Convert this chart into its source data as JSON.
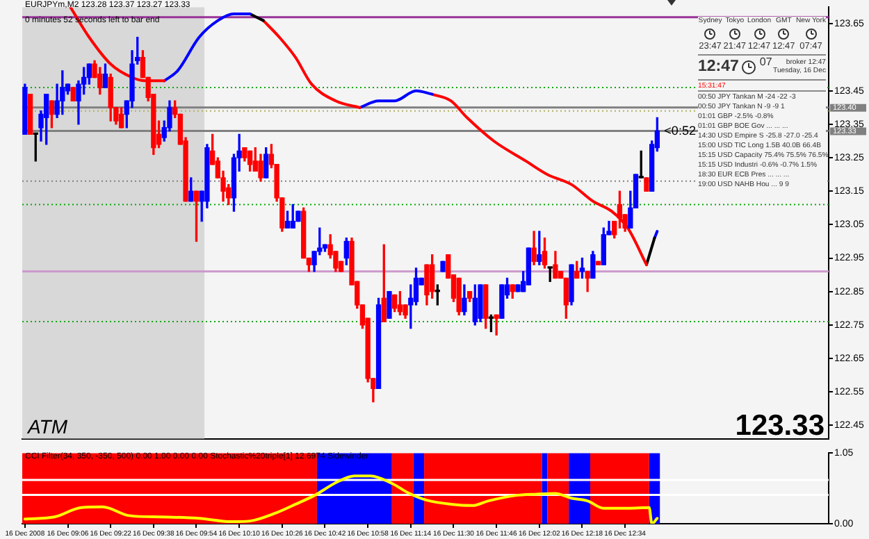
{
  "chart_data": [
    {
      "type": "candlestick",
      "title": "EURJPYm,M2 123.28 123.37 123.27 123.33",
      "subtitle": "0 minutes 52 seconds left to bar end",
      "series": [
        {
          "type": "candlestick",
          "x": [
            "2008-12-16T08:50",
            "2008-12-16T08:52",
            "2008-12-16T08:54",
            "2008-12-16T08:56",
            "2008-12-16T08:58",
            "2008-12-16T09:00",
            "2008-12-16T09:02",
            "2008-12-16T09:04",
            "2008-12-16T09:06",
            "2008-12-16T09:08",
            "2008-12-16T09:10",
            "2008-12-16T09:12",
            "2008-12-16T09:14",
            "2008-12-16T09:16",
            "2008-12-16T09:18",
            "2008-12-16T09:20",
            "2008-12-16T09:22",
            "2008-12-16T09:24",
            "2008-12-16T09:26",
            "2008-12-16T09:28",
            "2008-12-16T09:30",
            "2008-12-16T09:32",
            "2008-12-16T09:34",
            "2008-12-16T09:36",
            "2008-12-16T09:38",
            "2008-12-16T09:40",
            "2008-12-16T09:42",
            "2008-12-16T09:44",
            "2008-12-16T09:46",
            "2008-12-16T09:48",
            "2008-12-16T09:50",
            "2008-12-16T09:52",
            "2008-12-16T09:54",
            "2008-12-16T09:56",
            "2008-12-16T09:58",
            "2008-12-16T10:00",
            "2008-12-16T10:02",
            "2008-12-16T10:04",
            "2008-12-16T10:06",
            "2008-12-16T10:08",
            "2008-12-16T10:10",
            "2008-12-16T10:12",
            "2008-12-16T10:14",
            "2008-12-16T10:16",
            "2008-12-16T10:18",
            "2008-12-16T10:20",
            "2008-12-16T10:22",
            "2008-12-16T10:24",
            "2008-12-16T10:26",
            "2008-12-16T10:28",
            "2008-12-16T10:30",
            "2008-12-16T10:32",
            "2008-12-16T10:34",
            "2008-12-16T10:36",
            "2008-12-16T10:38",
            "2008-12-16T10:40",
            "2008-12-16T10:42",
            "2008-12-16T10:44",
            "2008-12-16T10:46",
            "2008-12-16T10:48",
            "2008-12-16T10:50",
            "2008-12-16T10:52",
            "2008-12-16T10:54",
            "2008-12-16T10:56",
            "2008-12-16T10:58",
            "2008-12-16T11:00",
            "2008-12-16T11:02",
            "2008-12-16T11:04",
            "2008-12-16T11:06",
            "2008-12-16T11:08",
            "2008-12-16T11:10",
            "2008-12-16T11:12",
            "2008-12-16T11:14",
            "2008-12-16T11:16",
            "2008-12-16T11:18",
            "2008-12-16T11:20",
            "2008-12-16T11:22",
            "2008-12-16T11:24",
            "2008-12-16T11:26",
            "2008-12-16T11:28",
            "2008-12-16T11:30",
            "2008-12-16T11:32",
            "2008-12-16T11:34",
            "2008-12-16T11:36",
            "2008-12-16T11:38",
            "2008-12-16T11:40",
            "2008-12-16T11:42",
            "2008-12-16T11:44",
            "2008-12-16T11:46",
            "2008-12-16T11:48",
            "2008-12-16T11:50",
            "2008-12-16T11:52",
            "2008-12-16T11:54",
            "2008-12-16T11:56",
            "2008-12-16T11:58",
            "2008-12-16T12:00",
            "2008-12-16T12:02",
            "2008-12-16T12:04",
            "2008-12-16T12:06",
            "2008-12-16T12:08",
            "2008-12-16T12:10",
            "2008-12-16T12:12",
            "2008-12-16T12:14",
            "2008-12-16T12:16",
            "2008-12-16T12:18",
            "2008-12-16T12:20",
            "2008-12-16T12:22",
            "2008-12-16T12:24",
            "2008-12-16T12:26",
            "2008-12-16T12:28",
            "2008-12-16T12:30",
            "2008-12-16T12:32",
            "2008-12-16T12:34",
            "2008-12-16T12:36",
            "2008-12-16T12:38",
            "2008-12-16T12:40",
            "2008-12-16T12:42",
            "2008-12-16T12:44",
            "2008-12-16T12:46"
          ],
          "ohlc": [
            [
              123.32,
              123.47,
              123.32,
              123.46
            ],
            [
              123.44,
              123.44,
              123.32,
              123.32
            ],
            [
              123.32,
              123.32,
              123.24,
              123.32
            ],
            [
              123.34,
              123.39,
              123.3,
              123.38
            ],
            [
              123.37,
              123.44,
              123.29,
              123.44
            ],
            [
              123.42,
              123.42,
              123.34,
              123.38
            ],
            [
              123.38,
              123.47,
              123.37,
              123.42
            ],
            [
              123.42,
              123.51,
              123.38,
              123.46
            ],
            [
              123.45,
              123.47,
              123.44,
              123.47
            ],
            [
              123.46,
              123.46,
              123.42,
              123.42
            ],
            [
              123.42,
              123.48,
              123.35,
              123.47
            ],
            [
              123.47,
              123.52,
              123.44,
              123.49
            ],
            [
              123.49,
              123.53,
              123.47,
              123.53
            ],
            [
              123.53,
              123.54,
              123.49,
              123.49
            ],
            [
              123.5,
              123.52,
              123.44,
              123.46
            ],
            [
              123.46,
              123.53,
              123.46,
              123.5
            ],
            [
              123.49,
              123.5,
              123.36,
              123.4
            ],
            [
              123.4,
              123.4,
              123.35,
              123.36
            ],
            [
              123.38,
              123.4,
              123.34,
              123.34
            ],
            [
              123.38,
              123.42,
              123.34,
              123.42
            ],
            [
              123.42,
              123.57,
              123.4,
              123.53
            ],
            [
              123.54,
              123.61,
              123.53,
              123.55
            ],
            [
              123.55,
              123.57,
              123.49,
              123.49
            ],
            [
              123.49,
              123.49,
              123.42,
              123.43
            ],
            [
              123.44,
              123.44,
              123.26,
              123.28
            ],
            [
              123.32,
              123.36,
              123.28,
              123.29
            ],
            [
              123.31,
              123.36,
              123.3,
              123.34
            ],
            [
              123.34,
              123.42,
              123.33,
              123.4
            ],
            [
              123.4,
              123.42,
              123.37,
              123.38
            ],
            [
              123.38,
              123.38,
              123.29,
              123.29
            ],
            [
              123.3,
              123.31,
              123.12,
              123.12
            ],
            [
              123.12,
              123.19,
              123.12,
              123.15
            ],
            [
              123.15,
              123.15,
              123.0,
              123.12
            ],
            [
              123.12,
              123.15,
              123.06,
              123.15
            ],
            [
              123.12,
              123.29,
              123.1,
              123.28
            ],
            [
              123.27,
              123.32,
              123.23,
              123.23
            ],
            [
              123.24,
              123.25,
              123.19,
              123.19
            ],
            [
              123.19,
              123.21,
              123.12,
              123.15
            ],
            [
              123.16,
              123.17,
              123.11,
              123.13
            ],
            [
              123.13,
              123.26,
              123.09,
              123.25
            ],
            [
              123.25,
              123.32,
              123.21,
              123.27
            ],
            [
              123.28,
              123.28,
              123.24,
              123.25
            ],
            [
              123.27,
              123.27,
              123.21,
              123.23
            ],
            [
              123.24,
              123.28,
              123.21,
              123.21
            ],
            [
              123.24,
              123.26,
              123.18,
              123.19
            ],
            [
              123.19,
              123.28,
              123.19,
              123.26
            ],
            [
              123.26,
              123.29,
              123.22,
              123.23
            ],
            [
              123.23,
              123.23,
              123.12,
              123.13
            ],
            [
              123.13,
              123.13,
              123.03,
              123.04
            ],
            [
              123.04,
              123.09,
              123.04,
              123.06
            ],
            [
              123.04,
              123.11,
              123.04,
              123.06
            ],
            [
              123.06,
              123.09,
              123.06,
              123.09
            ],
            [
              123.09,
              123.1,
              122.95,
              122.95
            ],
            [
              122.95,
              122.95,
              122.91,
              122.93
            ],
            [
              122.93,
              122.97,
              122.91,
              122.97
            ],
            [
              122.97,
              123.04,
              122.96,
              122.98
            ],
            [
              122.98,
              122.99,
              122.97,
              122.99
            ],
            [
              122.99,
              123.02,
              122.95,
              122.96
            ],
            [
              122.97,
              122.97,
              122.91,
              122.92
            ],
            [
              122.94,
              122.94,
              122.91,
              122.91
            ],
            [
              122.95,
              123.01,
              122.93,
              123.0
            ],
            [
              123.0,
              123.01,
              122.87,
              122.87
            ],
            [
              122.88,
              122.88,
              122.8,
              122.81
            ],
            [
              122.81,
              122.81,
              122.74,
              122.75
            ],
            [
              122.77,
              122.77,
              122.58,
              122.59
            ],
            [
              122.59,
              122.59,
              122.52,
              122.56
            ],
            [
              122.56,
              122.83,
              122.56,
              122.81
            ],
            [
              122.83,
              122.99,
              122.76,
              122.76
            ],
            [
              122.77,
              122.85,
              122.77,
              122.85
            ],
            [
              122.84,
              122.84,
              122.79,
              122.8
            ],
            [
              122.81,
              122.85,
              122.78,
              122.79
            ],
            [
              122.81,
              122.81,
              122.77,
              122.78
            ],
            [
              122.81,
              122.87,
              122.74,
              122.83
            ],
            [
              122.82,
              122.92,
              122.81,
              122.89
            ],
            [
              122.87,
              122.89,
              122.87,
              122.89
            ],
            [
              122.93,
              122.93,
              122.81,
              122.84
            ],
            [
              122.93,
              122.96,
              122.83,
              122.85
            ],
            [
              122.85,
              122.87,
              122.81,
              122.85
            ],
            [
              122.91,
              122.94,
              122.91,
              122.94
            ],
            [
              122.96,
              122.96,
              122.89,
              122.89
            ],
            [
              122.9,
              122.9,
              122.82,
              122.83
            ],
            [
              122.89,
              122.89,
              122.78,
              122.79
            ],
            [
              122.79,
              122.87,
              122.78,
              122.83
            ],
            [
              122.85,
              122.85,
              122.82,
              122.83
            ],
            [
              122.76,
              122.87,
              122.75,
              122.83
            ],
            [
              122.77,
              122.87,
              122.76,
              122.87
            ],
            [
              122.87,
              122.87,
              122.74,
              122.77
            ],
            [
              122.77,
              122.78,
              122.73,
              122.77
            ],
            [
              122.78,
              122.78,
              122.72,
              122.77
            ],
            [
              122.77,
              122.87,
              122.77,
              122.87
            ],
            [
              122.84,
              122.89,
              122.83,
              122.87
            ],
            [
              122.87,
              122.87,
              122.83,
              122.85
            ],
            [
              122.85,
              122.87,
              122.85,
              122.87
            ],
            [
              122.85,
              122.91,
              122.85,
              122.88
            ],
            [
              122.87,
              122.98,
              122.87,
              122.98
            ],
            [
              122.98,
              123.03,
              122.93,
              122.94
            ],
            [
              122.94,
              123.03,
              122.93,
              122.96
            ],
            [
              122.97,
              123.01,
              122.92,
              122.93
            ],
            [
              122.92,
              122.92,
              122.88,
              122.92
            ],
            [
              122.93,
              122.97,
              122.89,
              122.89
            ],
            [
              122.91,
              122.91,
              122.89,
              122.89
            ],
            [
              122.89,
              122.89,
              122.77,
              122.81
            ],
            [
              122.82,
              122.93,
              122.81,
              122.93
            ],
            [
              122.91,
              122.94,
              122.89,
              122.89
            ],
            [
              122.91,
              122.95,
              122.89,
              122.92
            ],
            [
              122.91,
              122.91,
              122.85,
              122.89
            ],
            [
              122.89,
              122.97,
              122.89,
              122.96
            ],
            [
              122.94,
              122.94,
              122.93,
              122.93
            ],
            [
              122.93,
              123.04,
              122.93,
              123.02
            ],
            [
              123.02,
              123.06,
              123.02,
              123.03
            ],
            [
              123.06,
              123.06,
              123.01,
              123.02
            ],
            [
              123.11,
              123.15,
              123.04,
              123.07
            ],
            [
              123.08,
              123.08,
              123.03,
              123.04
            ],
            [
              123.04,
              123.15,
              123.04,
              123.1
            ],
            [
              123.1,
              123.2,
              123.1,
              123.2
            ],
            [
              123.19,
              123.27,
              123.19,
              123.19
            ],
            [
              123.19,
              123.19,
              123.15,
              123.15
            ],
            [
              123.15,
              123.3,
              123.15,
              123.29
            ],
            [
              123.28,
              123.37,
              123.27,
              123.33
            ]
          ],
          "colors": [
            "#0000ff",
            "#ff0000",
            "#000000",
            "#0000ff",
            "#0000ff",
            "#ff0000",
            "#0000ff",
            "#0000ff",
            "#0000ff",
            "#ff0000",
            "#0000ff",
            "#0000ff",
            "#0000ff",
            "#ff0000",
            "#ff0000",
            "#0000ff",
            "#ff0000",
            "#ff0000",
            "#ff0000",
            "#0000ff",
            "#0000ff",
            "#0000ff",
            "#ff0000",
            "#ff0000",
            "#ff0000",
            "#ff0000",
            "#0000ff",
            "#0000ff",
            "#ff0000",
            "#ff0000",
            "#ff0000",
            "#0000ff",
            "#ff0000",
            "#0000ff",
            "#0000ff",
            "#ff0000",
            "#ff0000",
            "#ff0000",
            "#ff0000",
            "#0000ff",
            "#0000ff",
            "#ff0000",
            "#ff0000",
            "#ff0000",
            "#ff0000",
            "#0000ff",
            "#ff0000",
            "#ff0000",
            "#ff0000",
            "#0000ff",
            "#0000ff",
            "#0000ff",
            "#ff0000",
            "#ff0000",
            "#0000ff",
            "#0000ff",
            "#0000ff",
            "#ff0000",
            "#ff0000",
            "#ff0000",
            "#0000ff",
            "#ff0000",
            "#ff0000",
            "#ff0000",
            "#ff0000",
            "#ff0000",
            "#0000ff",
            "#ff0000",
            "#0000ff",
            "#ff0000",
            "#ff0000",
            "#ff0000",
            "#0000ff",
            "#0000ff",
            "#0000ff",
            "#ff0000",
            "#ff0000",
            "#000000",
            "#0000ff",
            "#ff0000",
            "#ff0000",
            "#ff0000",
            "#0000ff",
            "#ff0000",
            "#0000ff",
            "#0000ff",
            "#ff0000",
            "#000000",
            "#ff0000",
            "#0000ff",
            "#0000ff",
            "#ff0000",
            "#0000ff",
            "#0000ff",
            "#0000ff",
            "#ff0000",
            "#0000ff",
            "#ff0000",
            "#000000",
            "#ff0000",
            "#ff0000",
            "#ff0000",
            "#0000ff",
            "#ff0000",
            "#0000ff",
            "#ff0000",
            "#0000ff",
            "#ff0000",
            "#0000ff",
            "#0000ff",
            "#ff0000",
            "#ff0000",
            "#ff0000",
            "#0000ff",
            "#0000ff",
            "#000000",
            "#ff0000",
            "#0000ff",
            "#0000ff"
          ]
        },
        {
          "type": "line",
          "color": "#ff0000",
          "x": [
            "2008-12-16T09:07",
            "2008-12-16T09:14",
            "2008-12-16T09:22",
            "2008-12-16T09:30",
            "2008-12-16T09:35",
            "2008-12-16T09:42"
          ],
          "values": [
            123.7,
            123.61,
            123.53,
            123.49,
            123.48,
            123.48
          ]
        },
        {
          "type": "line",
          "color": "#0000ff",
          "x": [
            "2008-12-16T09:42",
            "2008-12-16T09:47",
            "2008-12-16T09:55",
            "2008-12-16T10:02",
            "2008-12-16T10:08",
            "2008-12-16T10:14"
          ],
          "values": [
            123.48,
            123.51,
            123.61,
            123.66,
            123.68,
            123.68
          ]
        },
        {
          "type": "line",
          "color": "#000000",
          "x": [
            "2008-12-16T10:14",
            "2008-12-16T10:19"
          ],
          "values": [
            123.68,
            123.66
          ]
        },
        {
          "type": "line",
          "color": "#ff0000",
          "x": [
            "2008-12-16T10:19",
            "2008-12-16T10:25",
            "2008-12-16T10:31",
            "2008-12-16T10:37",
            "2008-12-16T10:46",
            "2008-12-16T10:55"
          ],
          "values": [
            123.66,
            123.61,
            123.55,
            123.47,
            123.42,
            123.4
          ]
        },
        {
          "type": "line",
          "color": "#0000ff",
          "x": [
            "2008-12-16T10:55",
            "2008-12-16T11:02",
            "2008-12-16T11:08",
            "2008-12-16T11:16",
            "2008-12-16T11:22"
          ],
          "values": [
            123.4,
            123.42,
            123.42,
            123.45,
            123.44
          ]
        },
        {
          "type": "line",
          "color": "#ff0000",
          "x": [
            "2008-12-16T11:22",
            "2008-12-16T11:29",
            "2008-12-16T11:35",
            "2008-12-16T11:45",
            "2008-12-16T11:57",
            "2008-12-16T12:05",
            "2008-12-16T12:14",
            "2008-12-16T12:22",
            "2008-12-16T12:29",
            "2008-12-16T12:35",
            "2008-12-16T12:42"
          ],
          "values": [
            123.44,
            123.42,
            123.37,
            123.3,
            123.24,
            123.2,
            123.17,
            123.12,
            123.09,
            123.04,
            122.93
          ]
        },
        {
          "type": "line",
          "color": "#000000",
          "x": [
            "2008-12-16T12:42",
            "2008-12-16T12:45"
          ],
          "values": [
            122.93,
            123.01
          ]
        },
        {
          "type": "line",
          "color": "#0000ff",
          "x": [
            "2008-12-16T12:45",
            "2008-12-16T12:46"
          ],
          "values": [
            123.01,
            123.03
          ]
        }
      ],
      "xlim": [
        "2008-12-16T08:49",
        "2008-12-16T13:50"
      ],
      "ylim": [
        122.41,
        123.7
      ],
      "yticks": [
        123.65,
        123.45,
        123.35,
        123.25,
        123.15,
        123.05,
        122.95,
        122.85,
        122.75,
        122.65,
        122.55,
        122.45
      ],
      "tick_labels": "y",
      "bands": [
        {
          "axis": "x",
          "from": "2008-12-16T08:49",
          "to": "2008-12-16T09:57",
          "color": "#d8d8d8"
        }
      ],
      "ref_lines": [
        {
          "axis": "y",
          "value": 123.67,
          "color": "#993399"
        },
        {
          "axis": "y",
          "value": 123.46,
          "color": "#00aa00",
          "line_style": "dotted"
        },
        {
          "axis": "y",
          "value": 123.4,
          "label": "123.40",
          "color": "#808080"
        },
        {
          "axis": "y",
          "value": 123.39,
          "color": "#b0b060",
          "line_style": "dotted"
        },
        {
          "axis": "y",
          "value": 123.33,
          "label": "123.33",
          "color": "#808080"
        },
        {
          "axis": "y",
          "value": 123.18,
          "color": "#808080",
          "line_style": "dotted"
        },
        {
          "axis": "y",
          "value": 123.11,
          "color": "#00aa00",
          "line_style": "dotted"
        },
        {
          "axis": "y",
          "value": 122.91,
          "color": "#cc99cc"
        },
        {
          "axis": "y",
          "value": 122.76,
          "color": "#00aa00",
          "line_style": "dotted"
        }
      ],
      "annotations": [
        "ATM",
        "123.33",
        {
          "text": "<0:52",
          "x": "2008-12-16T12:46",
          "y": 123.33
        }
      ]
    },
    {
      "type": "other",
      "annotations": [
        "Sydney",
        "Tokyo",
        "London",
        "GMT",
        "New York",
        "23:47",
        "21:47",
        "12:47",
        "12:47",
        "07:47",
        "12:47",
        "07",
        "broker 12:47",
        "Tuesday, 16 Dec",
        "15:31:47",
        "00:50 JPY Tankan M -24 -22 -3",
        "00:50 JPY Tankan N -9 -9 1",
        "01:01 GBP -2.5% -0.8%",
        "01:01 GBP BOE Gov ... ... ...",
        "14:30 USD Empire S -25.8 -27.0 -25.4",
        "15:00 USD TIC Long 1.5B 40.0B 66.4B",
        "15:15 USD Capacity 75.4% 75.5% 76.5%",
        "15:15 USD Industri -0.6% -0.7% 1.5%",
        "18:30 EUR ECB Pres ... ... ...",
        "19:00 USD NAHB Hou ... 9 9"
      ]
    },
    {
      "type": "line",
      "title": "CCI Filter(34, 350, -350, 500) 0.00 1.00 0.00 0.00 Stochastic%20triple[1] 12.6974 Sidewinder",
      "series": [
        {
          "color": "#ffff00",
          "x": [
            "2008-12-16T08:50",
            "2008-12-16T09:01",
            "2008-12-16T09:11",
            "2008-12-16T09:19",
            "2008-12-16T09:29",
            "2008-12-16T09:41",
            "2008-12-16T09:55",
            "2008-12-16T10:07",
            "2008-12-16T10:14",
            "2008-12-16T10:23",
            "2008-12-16T10:31",
            "2008-12-16T10:38",
            "2008-12-16T10:47",
            "2008-12-16T10:53",
            "2008-12-16T10:59",
            "2008-12-16T11:07",
            "2008-12-16T11:13",
            "2008-12-16T11:20",
            "2008-12-16T11:29",
            "2008-12-16T11:37",
            "2008-12-16T11:43",
            "2008-12-16T11:53",
            "2008-12-16T12:01",
            "2008-12-16T12:08",
            "2008-12-16T12:14",
            "2008-12-16T12:20",
            "2008-12-16T12:26",
            "2008-12-16T12:35",
            "2008-12-16T12:43",
            "2008-12-16T12:44",
            "2008-12-16T12:46"
          ],
          "values": [
            0.07,
            0.1,
            0.24,
            0.25,
            0.12,
            0.1,
            0.08,
            0.03,
            0.04,
            0.15,
            0.29,
            0.42,
            0.63,
            0.71,
            0.71,
            0.6,
            0.46,
            0.35,
            0.29,
            0.27,
            0.34,
            0.42,
            0.44,
            0.45,
            0.38,
            0.34,
            0.23,
            0.23,
            0.24,
            0.0,
            0.08
          ]
        }
      ],
      "bands": [
        {
          "axis": "x",
          "from": "2008-12-16T08:49",
          "to": "2008-12-16T10:39",
          "color": "#ff0000"
        },
        {
          "axis": "x",
          "from": "2008-12-16T10:39",
          "to": "2008-12-16T11:07",
          "color": "#0000ff"
        },
        {
          "axis": "x",
          "from": "2008-12-16T11:07",
          "to": "2008-12-16T11:15",
          "color": "#ff0000"
        },
        {
          "axis": "x",
          "from": "2008-12-16T11:15",
          "to": "2008-12-16T11:19",
          "color": "#0000ff"
        },
        {
          "axis": "x",
          "from": "2008-12-16T11:19",
          "to": "2008-12-16T12:03",
          "color": "#ff0000"
        },
        {
          "axis": "x",
          "from": "2008-12-16T12:03",
          "to": "2008-12-16T12:05",
          "color": "#0000ff"
        },
        {
          "axis": "x",
          "from": "2008-12-16T12:05",
          "to": "2008-12-16T12:13",
          "color": "#ff0000"
        },
        {
          "axis": "x",
          "from": "2008-12-16T12:13",
          "to": "2008-12-16T12:21",
          "color": "#0000ff"
        },
        {
          "axis": "x",
          "from": "2008-12-16T12:21",
          "to": "2008-12-16T12:43",
          "color": "#ff0000"
        },
        {
          "axis": "x",
          "from": "2008-12-16T12:43",
          "to": "2008-12-16T12:47",
          "color": "#0000ff"
        }
      ],
      "xlim": [
        "2008-12-16T08:49",
        "2008-12-16T13:50"
      ],
      "ylim": [
        0,
        1.05
      ],
      "xticks": [
        {
          "value": "2008-12-16T08:50",
          "label": "16 Dec 2008"
        },
        {
          "value": "2008-12-16T09:06",
          "label": "16 Dec 09:06"
        },
        {
          "value": "2008-12-16T09:22",
          "label": "16 Dec 09:22"
        },
        {
          "value": "2008-12-16T09:38",
          "label": "16 Dec 09:38"
        },
        {
          "value": "2008-12-16T09:54",
          "label": "16 Dec 09:54"
        },
        {
          "value": "2008-12-16T10:10",
          "label": "16 Dec 10:10"
        },
        {
          "value": "2008-12-16T10:26",
          "label": "16 Dec 10:26"
        },
        {
          "value": "2008-12-16T10:42",
          "label": "16 Dec 10:42"
        },
        {
          "value": "2008-12-16T10:58",
          "label": "16 Dec 10:58"
        },
        {
          "value": "2008-12-16T11:14",
          "label": "16 Dec 11:14"
        },
        {
          "value": "2008-12-16T11:30",
          "label": "16 Dec 11:30"
        },
        {
          "value": "2008-12-16T11:46",
          "label": "16 Dec 11:46"
        },
        {
          "value": "2008-12-16T12:02",
          "label": "16 Dec 12:02"
        },
        {
          "value": "2008-12-16T12:18",
          "label": "16 Dec 12:18"
        },
        {
          "value": "2008-12-16T12:34",
          "label": "16 Dec 12:34"
        }
      ],
      "yticks": [
        {
          "value": 0,
          "label": "0.00"
        },
        1.05
      ],
      "ref_lines": [
        {
          "axis": "y",
          "value": 0.65,
          "color": "#ffffff"
        },
        {
          "axis": "y",
          "value": 0.43,
          "color": "#ffffff"
        }
      ]
    }
  ]
}
